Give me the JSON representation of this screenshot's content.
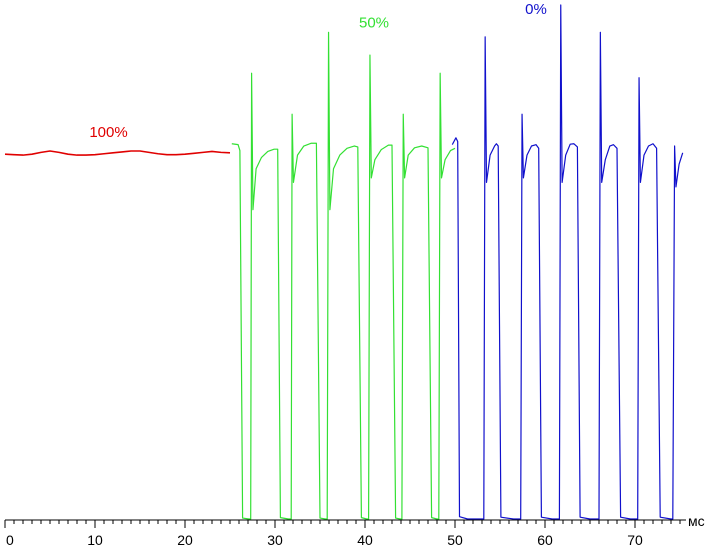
{
  "chart_data": {
    "type": "line",
    "title": "",
    "xlabel": "мс",
    "ylabel": "",
    "xlim": [
      0,
      77
    ],
    "ylim": [
      0,
      113
    ],
    "grid": false,
    "x_ticks": [
      0,
      10,
      20,
      30,
      40,
      50,
      60,
      70
    ],
    "x_tick_labels": [
      "0",
      "10",
      "20",
      "30",
      "40",
      "50",
      "60",
      "70"
    ],
    "x_minor_tick_step": 1,
    "colors": {
      "100%": "#e00000",
      "50%": "#33e033",
      "0%": "#1010cc",
      "axis": "#000000"
    },
    "series": [
      {
        "name": "100%",
        "label_at": [
          11.5,
          84
        ],
        "points": [
          [
            0,
            80.2
          ],
          [
            1,
            80.1
          ],
          [
            2,
            80.0
          ],
          [
            3,
            80.2
          ],
          [
            4,
            80.6
          ],
          [
            5,
            80.9
          ],
          [
            6,
            80.6
          ],
          [
            7,
            80.2
          ],
          [
            8,
            80.0
          ],
          [
            9,
            80.0
          ],
          [
            10,
            80.1
          ],
          [
            11,
            80.3
          ],
          [
            12,
            80.5
          ],
          [
            13,
            80.7
          ],
          [
            14,
            80.9
          ],
          [
            15,
            80.9
          ],
          [
            16,
            80.6
          ],
          [
            17,
            80.3
          ],
          [
            18,
            80.1
          ],
          [
            19,
            80.1
          ],
          [
            20,
            80.2
          ],
          [
            21,
            80.4
          ],
          [
            22,
            80.6
          ],
          [
            23,
            80.8
          ],
          [
            24,
            80.6
          ],
          [
            25,
            80.5
          ]
        ]
      },
      {
        "name": "50%",
        "label_at": [
          41,
          108
        ],
        "points": [
          [
            25.2,
            82.5
          ],
          [
            25.9,
            82.3
          ],
          [
            26.1,
            81.0
          ],
          [
            26.4,
            0.2
          ],
          [
            27.1,
            0
          ],
          [
            27.3,
            0
          ],
          [
            27.4,
            98
          ],
          [
            27.55,
            68
          ],
          [
            27.9,
            77
          ],
          [
            28.5,
            79.5
          ],
          [
            29.2,
            80.8
          ],
          [
            29.9,
            81.3
          ],
          [
            30.3,
            81.3
          ],
          [
            30.6,
            0.3
          ],
          [
            31.5,
            0
          ],
          [
            31.8,
            0
          ],
          [
            31.9,
            89
          ],
          [
            32.05,
            74
          ],
          [
            32.5,
            80
          ],
          [
            33.2,
            82
          ],
          [
            34.0,
            82.6
          ],
          [
            34.6,
            82.6
          ],
          [
            35.0,
            0.2
          ],
          [
            35.6,
            0
          ],
          [
            35.8,
            0
          ],
          [
            35.95,
            107
          ],
          [
            36.1,
            68
          ],
          [
            36.5,
            77
          ],
          [
            37.2,
            80
          ],
          [
            38.0,
            81.5
          ],
          [
            38.8,
            82
          ],
          [
            39.2,
            81.8
          ],
          [
            39.6,
            0.3
          ],
          [
            40.2,
            0
          ],
          [
            40.4,
            0
          ],
          [
            40.55,
            102
          ],
          [
            40.7,
            75
          ],
          [
            41.1,
            79
          ],
          [
            41.8,
            81.2
          ],
          [
            42.6,
            82.2
          ],
          [
            43.0,
            82.2
          ],
          [
            43.4,
            0.2
          ],
          [
            43.9,
            0
          ],
          [
            44.1,
            0
          ],
          [
            44.25,
            89
          ],
          [
            44.4,
            75
          ],
          [
            44.8,
            80
          ],
          [
            45.5,
            81.6
          ],
          [
            46.3,
            82.0
          ],
          [
            47.0,
            81.6
          ],
          [
            47.4,
            0.3
          ],
          [
            48.0,
            0
          ],
          [
            48.2,
            0
          ],
          [
            48.35,
            98
          ],
          [
            48.5,
            75
          ],
          [
            48.9,
            79
          ],
          [
            49.5,
            81.0
          ],
          [
            50.0,
            81.5
          ]
        ]
      },
      {
        "name": "0%",
        "label_at": [
          59,
          111
        ],
        "points": [
          [
            49.7,
            82.3
          ],
          [
            50.1,
            83.8
          ],
          [
            50.3,
            83.0
          ],
          [
            50.5,
            0.5
          ],
          [
            51.4,
            0
          ],
          [
            53.2,
            0
          ],
          [
            53.35,
            106
          ],
          [
            53.5,
            74
          ],
          [
            53.9,
            80
          ],
          [
            54.4,
            82
          ],
          [
            54.6,
            82.5
          ],
          [
            54.8,
            82.0
          ],
          [
            55.1,
            0.4
          ],
          [
            56.5,
            0
          ],
          [
            57.3,
            0
          ],
          [
            57.45,
            89
          ],
          [
            57.6,
            75
          ],
          [
            58.0,
            80
          ],
          [
            58.5,
            82
          ],
          [
            59.0,
            82.3
          ],
          [
            59.3,
            81.5
          ],
          [
            59.6,
            0.4
          ],
          [
            60.8,
            0
          ],
          [
            61.6,
            0
          ],
          [
            61.75,
            113
          ],
          [
            61.9,
            74
          ],
          [
            62.3,
            80
          ],
          [
            62.8,
            82.4
          ],
          [
            63.2,
            82.5
          ],
          [
            63.6,
            81.8
          ],
          [
            63.9,
            0.4
          ],
          [
            65.0,
            0
          ],
          [
            66.0,
            0
          ],
          [
            66.15,
            107
          ],
          [
            66.3,
            74
          ],
          [
            66.7,
            79
          ],
          [
            67.2,
            82.0
          ],
          [
            67.6,
            82.3
          ],
          [
            68.0,
            81.5
          ],
          [
            68.4,
            0.4
          ],
          [
            69.5,
            0
          ],
          [
            70.3,
            0
          ],
          [
            70.45,
            97
          ],
          [
            70.6,
            74
          ],
          [
            71.0,
            80
          ],
          [
            71.5,
            82.0
          ],
          [
            72.0,
            82.5
          ],
          [
            72.4,
            81.5
          ],
          [
            72.8,
            0.4
          ],
          [
            74.0,
            0
          ],
          [
            74.2,
            0
          ],
          [
            74.4,
            82
          ],
          [
            74.55,
            73
          ],
          [
            74.9,
            78
          ],
          [
            75.3,
            80.5
          ]
        ]
      }
    ]
  }
}
